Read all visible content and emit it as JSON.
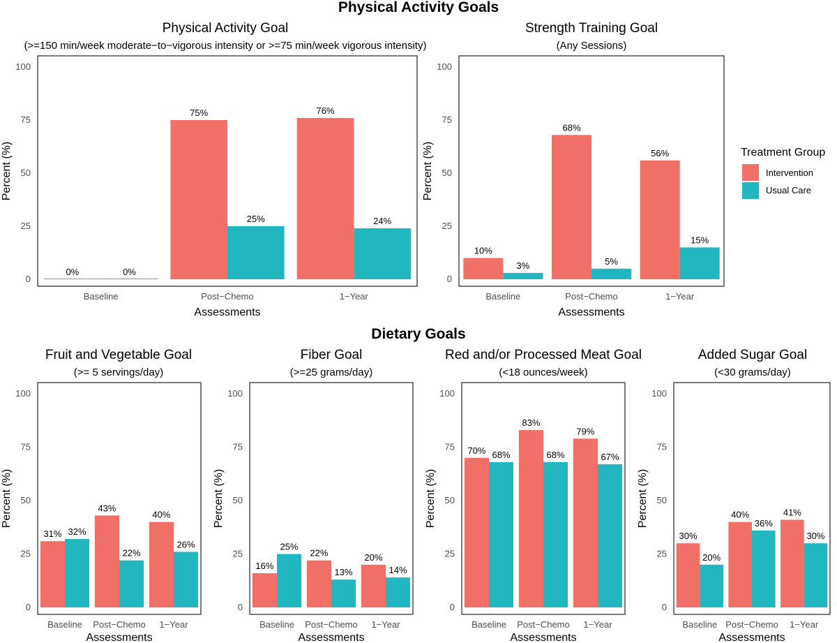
{
  "sections": {
    "physical": "Physical Activity Goals",
    "dietary": "Dietary Goals"
  },
  "legend": {
    "title": "Treatment Group",
    "items": [
      {
        "label": "Intervention",
        "color": "#F07068"
      },
      {
        "label": "Usual Care",
        "color": "#22B6C0"
      }
    ]
  },
  "chart_data": [
    {
      "type": "bar",
      "title": "Physical Activity Goal",
      "subtitle": "(>=150 min/week moderate−to−vigorous intensity or >=75 min/week vigorous intensity)",
      "xlabel": "Assessments",
      "ylabel": "Percent (%)",
      "ylim": [
        0,
        100
      ],
      "yticks": [
        "0",
        "25",
        "50",
        "75",
        "100"
      ],
      "categories": [
        "Baseline",
        "Post−Chemo",
        "1−Year"
      ],
      "series": [
        {
          "name": "Intervention",
          "values": [
            0,
            75,
            76
          ],
          "labels": [
            "0%",
            "75%",
            "76%"
          ]
        },
        {
          "name": "Usual Care",
          "values": [
            0,
            25,
            24
          ],
          "labels": [
            "0%",
            "25%",
            "24%"
          ]
        }
      ]
    },
    {
      "type": "bar",
      "title": "Strength Training Goal",
      "subtitle": "(Any Sessions)",
      "xlabel": "Assessments",
      "ylabel": "Percent (%)",
      "ylim": [
        0,
        100
      ],
      "yticks": [
        "0",
        "25",
        "50",
        "75",
        "100"
      ],
      "categories": [
        "Baseline",
        "Post−Chemo",
        "1−Year"
      ],
      "series": [
        {
          "name": "Intervention",
          "values": [
            10,
            68,
            56
          ],
          "labels": [
            "10%",
            "68%",
            "56%"
          ]
        },
        {
          "name": "Usual Care",
          "values": [
            3,
            5,
            15
          ],
          "labels": [
            "3%",
            "5%",
            "15%"
          ]
        }
      ]
    },
    {
      "type": "bar",
      "title": "Fruit and Vegetable Goal",
      "subtitle": "(>= 5 servings/day)",
      "xlabel": "Assessments",
      "ylabel": "Percent (%)",
      "ylim": [
        0,
        100
      ],
      "yticks": [
        "0",
        "25",
        "50",
        "75",
        "100"
      ],
      "categories": [
        "Baseline",
        "Post−Chemo",
        "1−Year"
      ],
      "series": [
        {
          "name": "Intervention",
          "values": [
            31,
            43,
            40
          ],
          "labels": [
            "31%",
            "43%",
            "40%"
          ]
        },
        {
          "name": "Usual Care",
          "values": [
            32,
            22,
            26
          ],
          "labels": [
            "32%",
            "22%",
            "26%"
          ]
        }
      ]
    },
    {
      "type": "bar",
      "title": "Fiber Goal",
      "subtitle": "(>=25 grams/day)",
      "xlabel": "Assessments",
      "ylabel": "Percent (%)",
      "ylim": [
        0,
        100
      ],
      "yticks": [
        "0",
        "25",
        "50",
        "75",
        "100"
      ],
      "categories": [
        "Baseline",
        "Post−Chemo",
        "1−Year"
      ],
      "series": [
        {
          "name": "Intervention",
          "values": [
            16,
            22,
            20
          ],
          "labels": [
            "16%",
            "22%",
            "20%"
          ]
        },
        {
          "name": "Usual Care",
          "values": [
            25,
            13,
            14
          ],
          "labels": [
            "25%",
            "13%",
            "14%"
          ]
        }
      ]
    },
    {
      "type": "bar",
      "title": "Red and/or Processed Meat Goal",
      "subtitle": "(<18 ounces/week)",
      "xlabel": "Assessments",
      "ylabel": "Percent (%)",
      "ylim": [
        0,
        100
      ],
      "yticks": [
        "0",
        "25",
        "50",
        "75",
        "100"
      ],
      "categories": [
        "Baseline",
        "Post−Chemo",
        "1−Year"
      ],
      "series": [
        {
          "name": "Intervention",
          "values": [
            70,
            83,
            79
          ],
          "labels": [
            "70%",
            "83%",
            "79%"
          ]
        },
        {
          "name": "Usual Care",
          "values": [
            68,
            68,
            67
          ],
          "labels": [
            "68%",
            "68%",
            "67%"
          ]
        }
      ]
    },
    {
      "type": "bar",
      "title": "Added Sugar Goal",
      "subtitle": "(<30 grams/day)",
      "xlabel": "Assessments",
      "ylabel": "Percent (%)",
      "ylim": [
        0,
        100
      ],
      "yticks": [
        "0",
        "25",
        "50",
        "75",
        "100"
      ],
      "categories": [
        "Baseline",
        "Post−Chemo",
        "1−Year"
      ],
      "series": [
        {
          "name": "Intervention",
          "values": [
            30,
            40,
            41
          ],
          "labels": [
            "30%",
            "40%",
            "41%"
          ]
        },
        {
          "name": "Usual Care",
          "values": [
            20,
            36,
            30
          ],
          "labels": [
            "20%",
            "36%",
            "30%"
          ]
        }
      ]
    }
  ]
}
